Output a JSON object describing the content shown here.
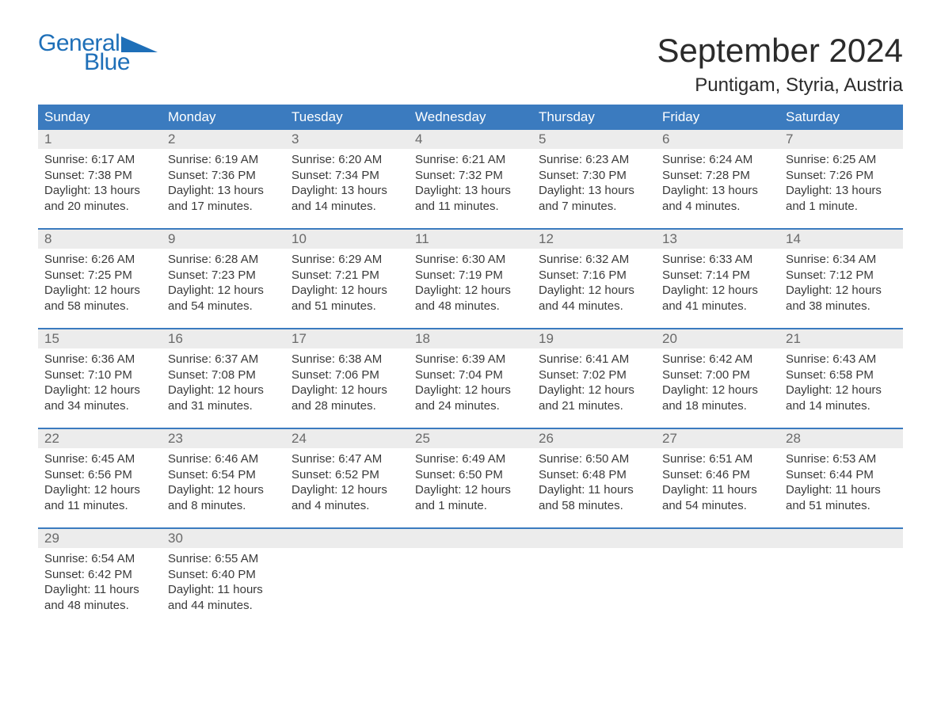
{
  "brand": {
    "line1": "General",
    "line2": "Blue"
  },
  "title": "September 2024",
  "location": "Puntigam, Styria, Austria",
  "colors": {
    "header_bg": "#3b7bbf",
    "header_text": "#ffffff",
    "daynum_bg": "#ececec",
    "daynum_text": "#6a6a6a",
    "body_text": "#3a3a3a",
    "rule": "#3b7bbf",
    "brand": "#1e6fb8",
    "page_bg": "#ffffff"
  },
  "weekdays": [
    "Sunday",
    "Monday",
    "Tuesday",
    "Wednesday",
    "Thursday",
    "Friday",
    "Saturday"
  ],
  "weeks": [
    [
      {
        "n": "1",
        "sunrise": "6:17 AM",
        "sunset": "7:38 PM",
        "dl1": "Daylight: 13 hours",
        "dl2": "and 20 minutes."
      },
      {
        "n": "2",
        "sunrise": "6:19 AM",
        "sunset": "7:36 PM",
        "dl1": "Daylight: 13 hours",
        "dl2": "and 17 minutes."
      },
      {
        "n": "3",
        "sunrise": "6:20 AM",
        "sunset": "7:34 PM",
        "dl1": "Daylight: 13 hours",
        "dl2": "and 14 minutes."
      },
      {
        "n": "4",
        "sunrise": "6:21 AM",
        "sunset": "7:32 PM",
        "dl1": "Daylight: 13 hours",
        "dl2": "and 11 minutes."
      },
      {
        "n": "5",
        "sunrise": "6:23 AM",
        "sunset": "7:30 PM",
        "dl1": "Daylight: 13 hours",
        "dl2": "and 7 minutes."
      },
      {
        "n": "6",
        "sunrise": "6:24 AM",
        "sunset": "7:28 PM",
        "dl1": "Daylight: 13 hours",
        "dl2": "and 4 minutes."
      },
      {
        "n": "7",
        "sunrise": "6:25 AM",
        "sunset": "7:26 PM",
        "dl1": "Daylight: 13 hours",
        "dl2": "and 1 minute."
      }
    ],
    [
      {
        "n": "8",
        "sunrise": "6:26 AM",
        "sunset": "7:25 PM",
        "dl1": "Daylight: 12 hours",
        "dl2": "and 58 minutes."
      },
      {
        "n": "9",
        "sunrise": "6:28 AM",
        "sunset": "7:23 PM",
        "dl1": "Daylight: 12 hours",
        "dl2": "and 54 minutes."
      },
      {
        "n": "10",
        "sunrise": "6:29 AM",
        "sunset": "7:21 PM",
        "dl1": "Daylight: 12 hours",
        "dl2": "and 51 minutes."
      },
      {
        "n": "11",
        "sunrise": "6:30 AM",
        "sunset": "7:19 PM",
        "dl1": "Daylight: 12 hours",
        "dl2": "and 48 minutes."
      },
      {
        "n": "12",
        "sunrise": "6:32 AM",
        "sunset": "7:16 PM",
        "dl1": "Daylight: 12 hours",
        "dl2": "and 44 minutes."
      },
      {
        "n": "13",
        "sunrise": "6:33 AM",
        "sunset": "7:14 PM",
        "dl1": "Daylight: 12 hours",
        "dl2": "and 41 minutes."
      },
      {
        "n": "14",
        "sunrise": "6:34 AM",
        "sunset": "7:12 PM",
        "dl1": "Daylight: 12 hours",
        "dl2": "and 38 minutes."
      }
    ],
    [
      {
        "n": "15",
        "sunrise": "6:36 AM",
        "sunset": "7:10 PM",
        "dl1": "Daylight: 12 hours",
        "dl2": "and 34 minutes."
      },
      {
        "n": "16",
        "sunrise": "6:37 AM",
        "sunset": "7:08 PM",
        "dl1": "Daylight: 12 hours",
        "dl2": "and 31 minutes."
      },
      {
        "n": "17",
        "sunrise": "6:38 AM",
        "sunset": "7:06 PM",
        "dl1": "Daylight: 12 hours",
        "dl2": "and 28 minutes."
      },
      {
        "n": "18",
        "sunrise": "6:39 AM",
        "sunset": "7:04 PM",
        "dl1": "Daylight: 12 hours",
        "dl2": "and 24 minutes."
      },
      {
        "n": "19",
        "sunrise": "6:41 AM",
        "sunset": "7:02 PM",
        "dl1": "Daylight: 12 hours",
        "dl2": "and 21 minutes."
      },
      {
        "n": "20",
        "sunrise": "6:42 AM",
        "sunset": "7:00 PM",
        "dl1": "Daylight: 12 hours",
        "dl2": "and 18 minutes."
      },
      {
        "n": "21",
        "sunrise": "6:43 AM",
        "sunset": "6:58 PM",
        "dl1": "Daylight: 12 hours",
        "dl2": "and 14 minutes."
      }
    ],
    [
      {
        "n": "22",
        "sunrise": "6:45 AM",
        "sunset": "6:56 PM",
        "dl1": "Daylight: 12 hours",
        "dl2": "and 11 minutes."
      },
      {
        "n": "23",
        "sunrise": "6:46 AM",
        "sunset": "6:54 PM",
        "dl1": "Daylight: 12 hours",
        "dl2": "and 8 minutes."
      },
      {
        "n": "24",
        "sunrise": "6:47 AM",
        "sunset": "6:52 PM",
        "dl1": "Daylight: 12 hours",
        "dl2": "and 4 minutes."
      },
      {
        "n": "25",
        "sunrise": "6:49 AM",
        "sunset": "6:50 PM",
        "dl1": "Daylight: 12 hours",
        "dl2": "and 1 minute."
      },
      {
        "n": "26",
        "sunrise": "6:50 AM",
        "sunset": "6:48 PM",
        "dl1": "Daylight: 11 hours",
        "dl2": "and 58 minutes."
      },
      {
        "n": "27",
        "sunrise": "6:51 AM",
        "sunset": "6:46 PM",
        "dl1": "Daylight: 11 hours",
        "dl2": "and 54 minutes."
      },
      {
        "n": "28",
        "sunrise": "6:53 AM",
        "sunset": "6:44 PM",
        "dl1": "Daylight: 11 hours",
        "dl2": "and 51 minutes."
      }
    ],
    [
      {
        "n": "29",
        "sunrise": "6:54 AM",
        "sunset": "6:42 PM",
        "dl1": "Daylight: 11 hours",
        "dl2": "and 48 minutes."
      },
      {
        "n": "30",
        "sunrise": "6:55 AM",
        "sunset": "6:40 PM",
        "dl1": "Daylight: 11 hours",
        "dl2": "and 44 minutes."
      },
      null,
      null,
      null,
      null,
      null
    ]
  ],
  "labels": {
    "sunrise_prefix": "Sunrise: ",
    "sunset_prefix": "Sunset: "
  }
}
